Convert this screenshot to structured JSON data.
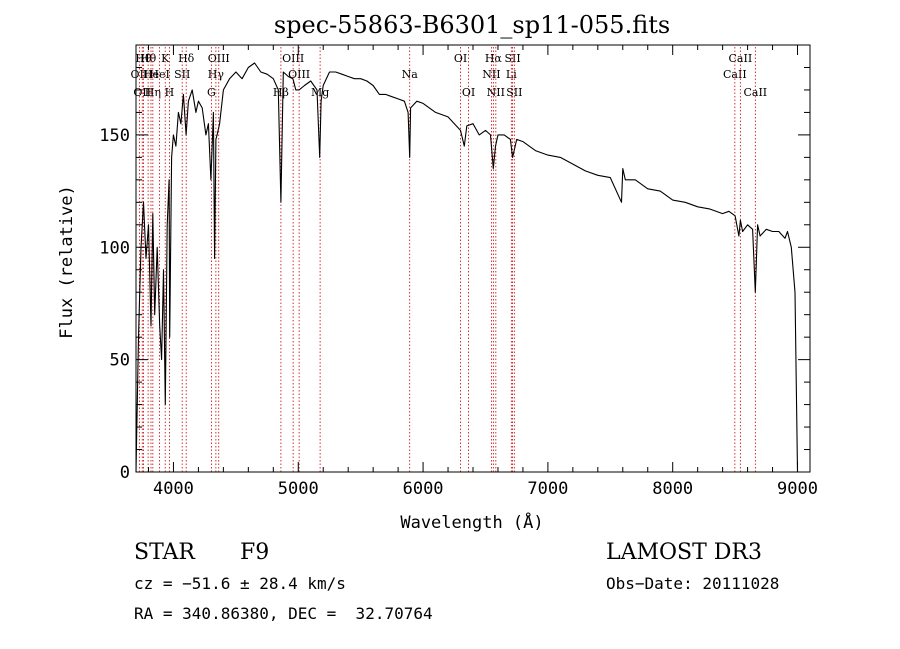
{
  "chart_data": {
    "type": "line",
    "title": "spec-55863-B6301_sp11-055.fits",
    "xlabel": "Wavelength (Å)",
    "ylabel": "Flux (relative)",
    "xlim": [
      3700,
      9100
    ],
    "ylim": [
      0,
      190
    ],
    "xticks": [
      4000,
      5000,
      6000,
      7000,
      8000,
      9000
    ],
    "yticks": [
      0,
      50,
      100,
      150
    ],
    "series": [
      {
        "name": "flux",
        "x": [
          3700,
          3720,
          3740,
          3760,
          3780,
          3800,
          3820,
          3835,
          3850,
          3870,
          3890,
          3905,
          3920,
          3935,
          3950,
          3965,
          3970,
          3985,
          4000,
          4020,
          4040,
          4060,
          4080,
          4101,
          4120,
          4150,
          4180,
          4200,
          4230,
          4260,
          4280,
          4300,
          4320,
          4330,
          4340,
          4350,
          4370,
          4400,
          4450,
          4500,
          4550,
          4600,
          4650,
          4700,
          4750,
          4800,
          4840,
          4861,
          4880,
          4920,
          4957,
          4980,
          5007,
          5050,
          5100,
          5150,
          5172,
          5183,
          5200,
          5250,
          5300,
          5350,
          5400,
          5450,
          5500,
          5550,
          5600,
          5650,
          5700,
          5750,
          5800,
          5850,
          5880,
          5893,
          5900,
          5950,
          6000,
          6100,
          6200,
          6300,
          6330,
          6350,
          6400,
          6450,
          6500,
          6540,
          6563,
          6580,
          6600,
          6650,
          6700,
          6717,
          6750,
          6800,
          6900,
          7000,
          7100,
          7200,
          7300,
          7400,
          7500,
          7590,
          7600,
          7620,
          7700,
          7800,
          7900,
          8000,
          8100,
          8200,
          8300,
          8400,
          8450,
          8500,
          8530,
          8542,
          8560,
          8600,
          8640,
          8662,
          8680,
          8700,
          8750,
          8800,
          8850,
          8900,
          8920,
          8950,
          8980,
          9000
        ],
        "values": [
          0,
          60,
          100,
          120,
          95,
          110,
          65,
          115,
          70,
          100,
          65,
          50,
          90,
          30,
          110,
          130,
          60,
          140,
          150,
          145,
          160,
          155,
          168,
          150,
          165,
          170,
          160,
          165,
          162,
          150,
          155,
          130,
          160,
          95,
          148,
          150,
          155,
          170,
          175,
          178,
          175,
          180,
          182,
          178,
          177,
          175,
          170,
          120,
          178,
          176,
          175,
          170,
          170,
          172,
          174,
          170,
          140,
          165,
          172,
          178,
          178,
          177,
          176,
          175,
          175,
          174,
          172,
          168,
          168,
          167,
          166,
          165,
          160,
          140,
          162,
          165,
          164,
          160,
          158,
          152,
          145,
          154,
          155,
          150,
          152,
          150,
          135,
          145,
          150,
          150,
          148,
          140,
          148,
          147,
          143,
          141,
          140,
          137,
          134,
          132,
          131,
          120,
          135,
          130,
          130,
          126,
          125,
          121,
          120,
          118,
          117,
          115,
          116,
          114,
          105,
          112,
          107,
          110,
          108,
          80,
          110,
          105,
          108,
          107,
          107,
          104,
          107,
          100,
          80,
          0
        ]
      }
    ],
    "line_markers": [
      {
        "wavelength": 3727,
        "label": "OII",
        "row": 2
      },
      {
        "wavelength": 3750,
        "label": "OII",
        "row": 3
      },
      {
        "wavelength": 3760,
        "label": "Hθ",
        "row": 1
      },
      {
        "wavelength": 3797,
        "label": "Hθ",
        "row": 1
      },
      {
        "wavelength": 3820,
        "label": "He",
        "row": 2
      },
      {
        "wavelength": 3835,
        "label": "Hη",
        "row": 3
      },
      {
        "wavelength": 3889,
        "label": "HeI",
        "row": 2
      },
      {
        "wavelength": 3934,
        "label": "K",
        "row": 1
      },
      {
        "wavelength": 3968,
        "label": "H",
        "row": 3
      },
      {
        "wavelength": 4070,
        "label": "SII",
        "row": 2
      },
      {
        "wavelength": 4102,
        "label": "Hδ",
        "row": 1
      },
      {
        "wavelength": 4304,
        "label": "G",
        "row": 3
      },
      {
        "wavelength": 4340,
        "label": "Hγ",
        "row": 2
      },
      {
        "wavelength": 4363,
        "label": "OIII",
        "row": 1
      },
      {
        "wavelength": 4861,
        "label": "Hβ",
        "row": 3
      },
      {
        "wavelength": 4959,
        "label": "OIII",
        "row": 1
      },
      {
        "wavelength": 5007,
        "label": "OIII",
        "row": 2
      },
      {
        "wavelength": 5175,
        "label": "Mg",
        "row": 3
      },
      {
        "wavelength": 5893,
        "label": "Na",
        "row": 2
      },
      {
        "wavelength": 6300,
        "label": "OI",
        "row": 1
      },
      {
        "wavelength": 6364,
        "label": "OI",
        "row": 3
      },
      {
        "wavelength": 6548,
        "label": "NII",
        "row": 2
      },
      {
        "wavelength": 6563,
        "label": "Hα",
        "row": 1
      },
      {
        "wavelength": 6583,
        "label": "NII",
        "row": 3
      },
      {
        "wavelength": 6707,
        "label": "Li",
        "row": 2
      },
      {
        "wavelength": 6717,
        "label": "SII",
        "row": 1
      },
      {
        "wavelength": 6731,
        "label": "SII",
        "row": 3
      },
      {
        "wavelength": 8498,
        "label": "CaII",
        "row": 2
      },
      {
        "wavelength": 8542,
        "label": "CaII",
        "row": 1
      },
      {
        "wavelength": 8662,
        "label": "CaII",
        "row": 3
      }
    ]
  },
  "info": {
    "object_class": "STAR",
    "subclass": "F9",
    "survey": "LAMOST DR3",
    "redshift_text": "cz = −51.6 ± 28.4 km/s",
    "obs_date": "Obs−Date: 20111028",
    "coords": "RA = 340.86380, DEC =  32.70764"
  },
  "colors": {
    "spectrum": "#000000",
    "line_markers": "#cc0000",
    "axes": "#000000"
  }
}
